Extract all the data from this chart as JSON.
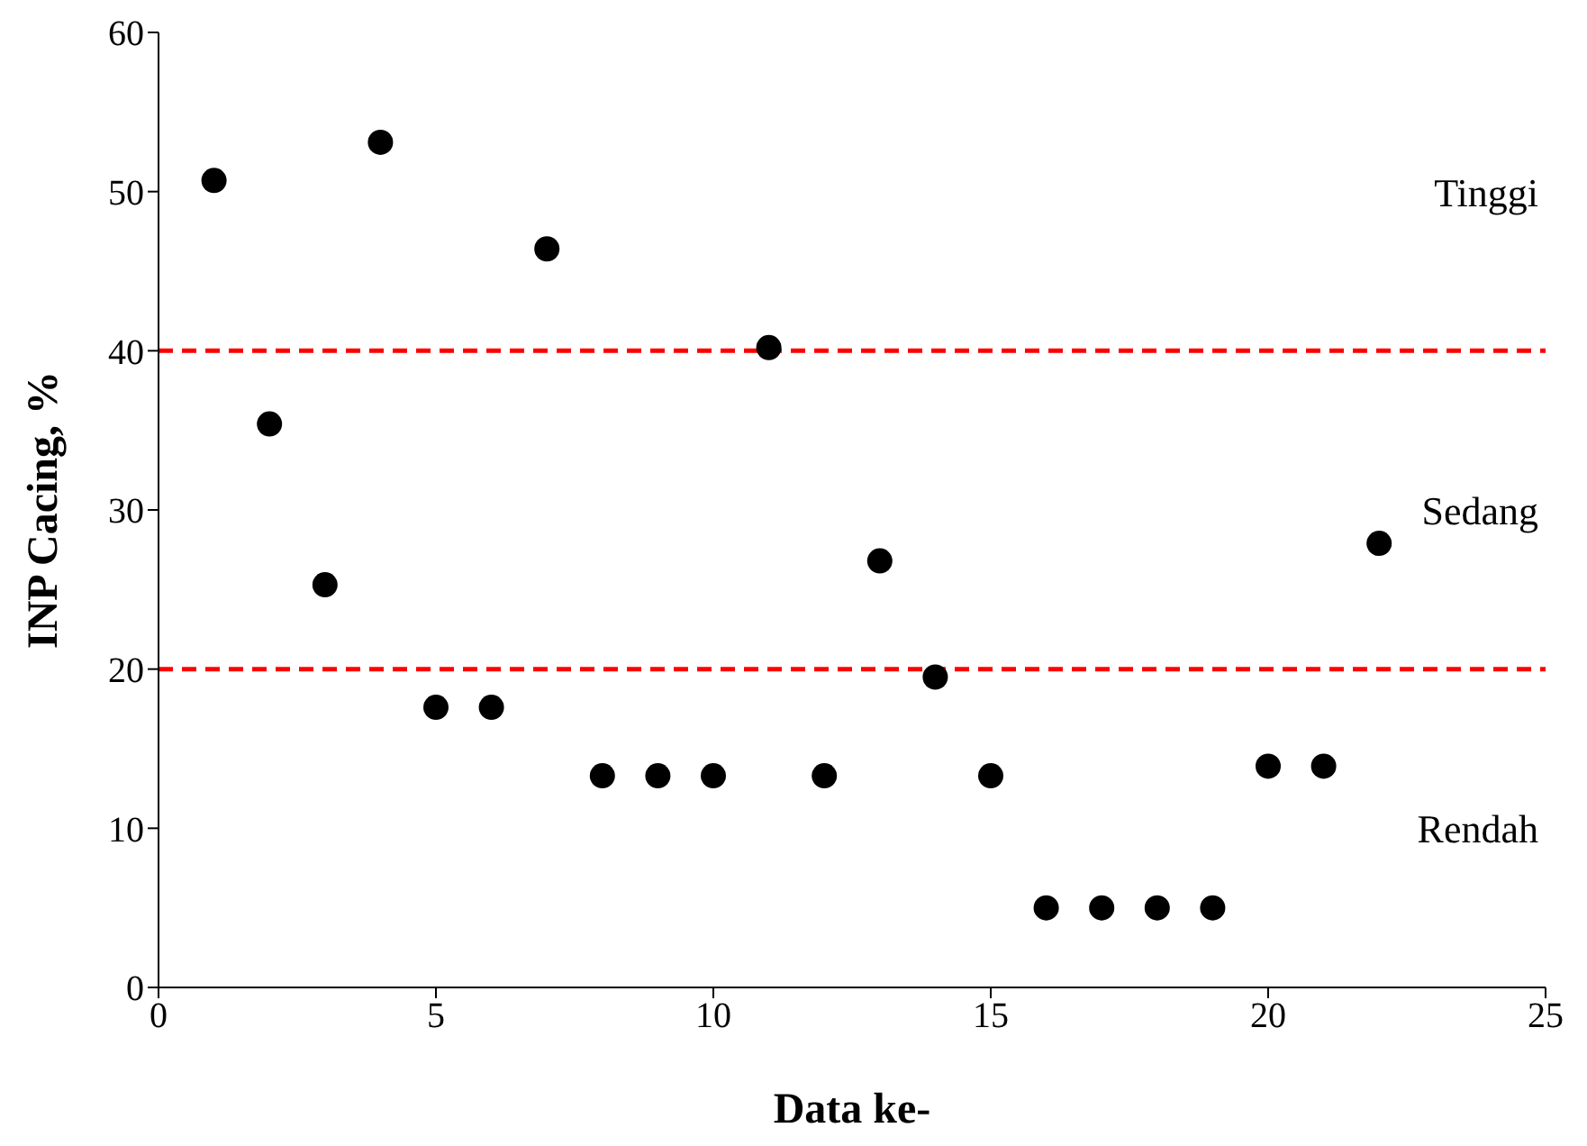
{
  "chart_data": {
    "type": "scatter",
    "xlabel": "Data ke-",
    "ylabel": "INP Cacing, %",
    "x": [
      1,
      2,
      3,
      4,
      5,
      6,
      7,
      8,
      9,
      10,
      11,
      12,
      13,
      14,
      15,
      16,
      17,
      18,
      19,
      20,
      21,
      22
    ],
    "series": [
      {
        "color": "#000000",
        "values": [
          50.7,
          35.4,
          25.3,
          53.1,
          17.6,
          17.6,
          46.4,
          13.3,
          13.3,
          13.3,
          40.2,
          13.3,
          26.8,
          19.5,
          13.3,
          5.0,
          5.0,
          5.0,
          5.0,
          13.9,
          13.9,
          27.9
        ]
      }
    ],
    "xlim": [
      0,
      25
    ],
    "xticks": [
      0,
      5,
      10,
      15,
      20,
      25
    ],
    "ylim": [
      0,
      60
    ],
    "yticks": [
      0,
      10,
      20,
      30,
      40,
      50,
      60
    ],
    "ref_lines": [
      {
        "axis": "y",
        "value": 40,
        "color": "#ff0000",
        "line_style": "dashed"
      },
      {
        "axis": "y",
        "value": 20,
        "color": "#ff0000",
        "line_style": "dashed"
      }
    ],
    "annotations": [
      "Tinggi",
      "Sedang",
      "Rendah"
    ],
    "marker": "circle",
    "grid": false,
    "legend": false
  }
}
